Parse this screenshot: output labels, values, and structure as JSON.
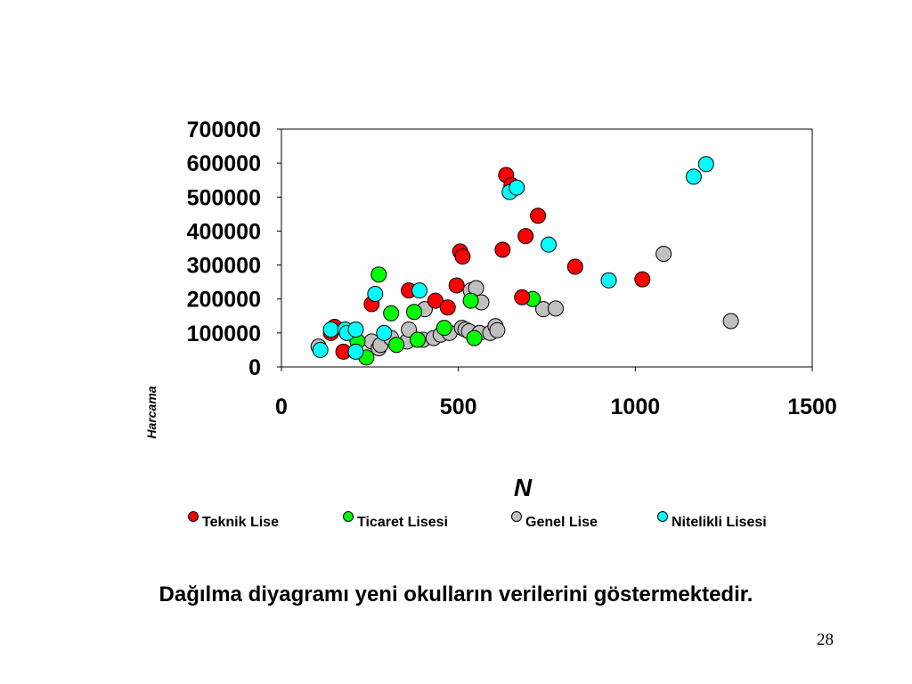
{
  "slide": {
    "caption": "Dağılma diyagramı yeni okulların verilerini göstermektedir.",
    "page_number": "28"
  },
  "chart_data": {
    "type": "scatter",
    "title": "",
    "xlabel": "N",
    "ylabel": "Harcama",
    "xlim": [
      0,
      1500
    ],
    "ylim": [
      0,
      700000
    ],
    "x_ticks": [
      "0",
      "500",
      "1000",
      "1500"
    ],
    "y_ticks": [
      "0",
      "100000",
      "200000",
      "300000",
      "400000",
      "500000",
      "600000",
      "700000"
    ],
    "grid": false,
    "legend_position": "bottom",
    "series": [
      {
        "name": "Teknik Lise",
        "color": "#ff0000",
        "points": [
          [
            140,
            100000
          ],
          [
            150,
            118000
          ],
          [
            175,
            45000
          ],
          [
            255,
            185000
          ],
          [
            360,
            225000
          ],
          [
            435,
            195000
          ],
          [
            470,
            175000
          ],
          [
            495,
            240000
          ],
          [
            505,
            340000
          ],
          [
            512,
            325000
          ],
          [
            625,
            345000
          ],
          [
            635,
            565000
          ],
          [
            650,
            535000
          ],
          [
            680,
            205000
          ],
          [
            690,
            385000
          ],
          [
            725,
            445000
          ],
          [
            830,
            295000
          ],
          [
            1020,
            258000
          ]
        ]
      },
      {
        "name": "Ticaret Lisesi",
        "color": "#00ff00",
        "points": [
          [
            215,
            75000
          ],
          [
            240,
            28000
          ],
          [
            275,
            272000
          ],
          [
            310,
            158000
          ],
          [
            325,
            65000
          ],
          [
            375,
            162000
          ],
          [
            385,
            80000
          ],
          [
            460,
            115000
          ],
          [
            535,
            195000
          ],
          [
            545,
            85000
          ],
          [
            710,
            200000
          ]
        ]
      },
      {
        "name": "Genel Lise",
        "color": "#c0c0c0",
        "points": [
          [
            105,
            60000
          ],
          [
            255,
            75000
          ],
          [
            275,
            55000
          ],
          [
            280,
            65000
          ],
          [
            310,
            85000
          ],
          [
            355,
            75000
          ],
          [
            360,
            110000
          ],
          [
            400,
            80000
          ],
          [
            405,
            170000
          ],
          [
            430,
            85000
          ],
          [
            450,
            95000
          ],
          [
            475,
            100000
          ],
          [
            510,
            115000
          ],
          [
            520,
            110000
          ],
          [
            530,
            105000
          ],
          [
            535,
            225000
          ],
          [
            550,
            232000
          ],
          [
            560,
            100000
          ],
          [
            565,
            190000
          ],
          [
            590,
            100000
          ],
          [
            605,
            120000
          ],
          [
            610,
            108000
          ],
          [
            740,
            170000
          ],
          [
            775,
            172000
          ],
          [
            1080,
            333000
          ],
          [
            1270,
            135000
          ]
        ]
      },
      {
        "name": "Nitelikli Lisesi",
        "color": "#00ffff",
        "points": [
          [
            110,
            50000
          ],
          [
            140,
            110000
          ],
          [
            180,
            110000
          ],
          [
            185,
            100000
          ],
          [
            210,
            45000
          ],
          [
            210,
            110000
          ],
          [
            265,
            215000
          ],
          [
            290,
            100000
          ],
          [
            390,
            225000
          ],
          [
            645,
            515000
          ],
          [
            665,
            528000
          ],
          [
            755,
            360000
          ],
          [
            925,
            255000
          ],
          [
            1165,
            560000
          ],
          [
            1200,
            597000
          ]
        ]
      }
    ]
  }
}
